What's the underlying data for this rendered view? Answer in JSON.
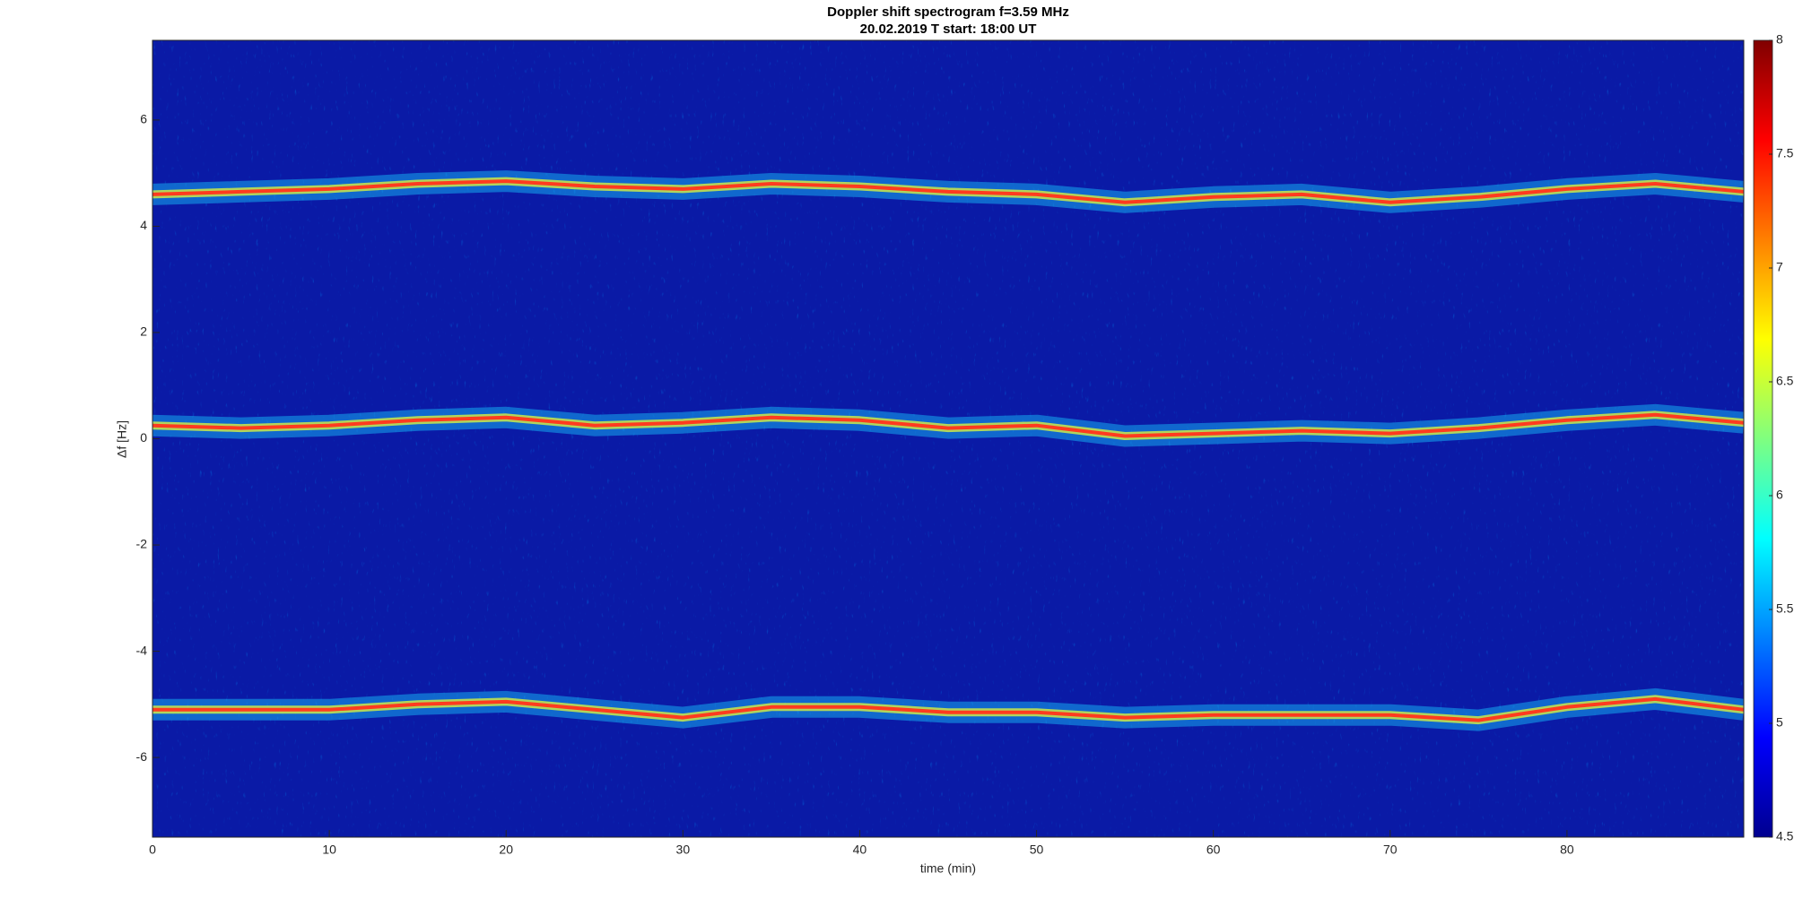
{
  "chart_data": {
    "type": "spectrogram",
    "title": "Doppler shift spectrogram f=3.59 MHz",
    "subtitle": "20.02.2019   T start: 18:00 UT",
    "x_label": "time (min)",
    "y_label": "Δf [Hz]",
    "xlim": [
      0,
      90
    ],
    "xticks": [
      0,
      10,
      20,
      30,
      40,
      50,
      60,
      70,
      80
    ],
    "ylim": [
      -7.5,
      7.5
    ],
    "yticks": [
      -6,
      -4,
      -2,
      0,
      2,
      4,
      6
    ],
    "clim": [
      4.5,
      8
    ],
    "cticks": [
      4.5,
      5,
      5.5,
      6,
      6.5,
      7,
      7.5,
      8
    ],
    "x": [
      0,
      5,
      10,
      15,
      20,
      25,
      30,
      35,
      40,
      45,
      50,
      55,
      60,
      65,
      70,
      75,
      80,
      85,
      90
    ],
    "series": [
      {
        "color": "#ff3b1f",
        "values": [
          4.6,
          4.65,
          4.7,
          4.8,
          4.85,
          4.75,
          4.7,
          4.8,
          4.75,
          4.65,
          4.6,
          4.45,
          4.55,
          4.6,
          4.45,
          4.55,
          4.7,
          4.8,
          4.65
        ]
      },
      {
        "color": "#ff3b1f",
        "values": [
          0.25,
          0.2,
          0.25,
          0.35,
          0.4,
          0.25,
          0.3,
          0.4,
          0.35,
          0.2,
          0.25,
          0.05,
          0.1,
          0.15,
          0.1,
          0.2,
          0.35,
          0.45,
          0.3
        ]
      },
      {
        "color": "#ff3b1f",
        "values": [
          -5.1,
          -5.1,
          -5.1,
          -5.0,
          -4.95,
          -5.1,
          -5.25,
          -5.05,
          -5.05,
          -5.15,
          -5.15,
          -5.25,
          -5.2,
          -5.2,
          -5.2,
          -5.3,
          -5.05,
          -4.9,
          -5.1
        ]
      }
    ]
  }
}
